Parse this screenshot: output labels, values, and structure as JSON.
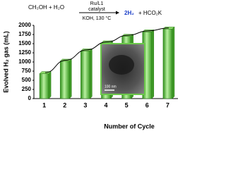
{
  "chart_data": {
    "type": "bar",
    "reaction": {
      "reactants": "CH₃OH + H₂O",
      "catalyst": "Ru/L1",
      "catalyst_word": "catalyst",
      "conditions": "KOH, 130 °C",
      "product_h2": "2H₂",
      "product_plus": "+ HCO₂K"
    },
    "inset_label": "100 nm",
    "x_label": "Number of Cycle",
    "y_label": "Evolved H₂ gas (mL)",
    "categories": [
      "1",
      "2",
      "3",
      "4",
      "5",
      "6",
      "7"
    ],
    "values": [
      680,
      1020,
      1300,
      1520,
      1700,
      1820,
      1900
    ],
    "color": "#4caf2a",
    "ylim": [
      0,
      2000
    ],
    "yticks": [
      0,
      250,
      500,
      750,
      1000,
      1250,
      1500,
      1750,
      2000
    ]
  }
}
